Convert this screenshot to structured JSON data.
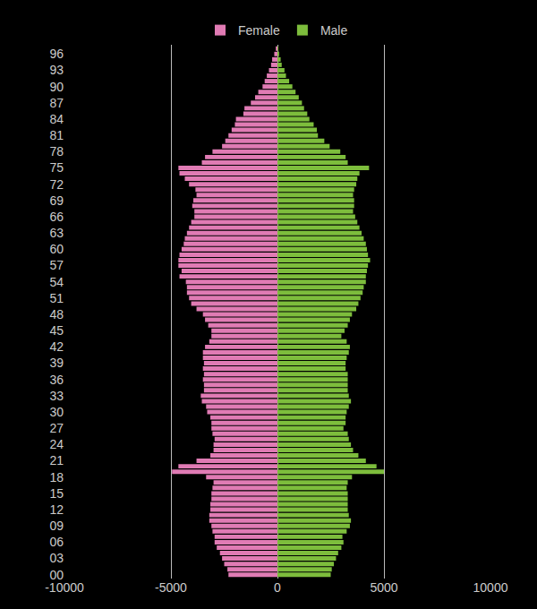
{
  "chart_data": {
    "type": "bar",
    "orientation": "horizontal",
    "stacked": true,
    "grid": true,
    "legend": "top",
    "categories": [
      "00",
      null,
      null,
      "03",
      null,
      null,
      "06",
      null,
      null,
      "09",
      null,
      null,
      "12",
      null,
      null,
      "15",
      null,
      null,
      "18",
      null,
      null,
      "21",
      null,
      null,
      "24",
      null,
      null,
      "27",
      null,
      null,
      "30",
      null,
      null,
      "33",
      null,
      null,
      "36",
      null,
      null,
      "39",
      null,
      null,
      "42",
      null,
      null,
      "45",
      null,
      null,
      "48",
      null,
      null,
      "51",
      null,
      null,
      "54",
      null,
      null,
      "57",
      null,
      null,
      "60",
      null,
      null,
      "63",
      null,
      null,
      "66",
      null,
      null,
      "69",
      null,
      null,
      "72",
      null,
      null,
      "75",
      null,
      null,
      "78",
      null,
      null,
      "81",
      null,
      null,
      "84",
      null,
      null,
      "87",
      null,
      null,
      "90",
      null,
      null,
      "93",
      null,
      null,
      "96",
      null
    ],
    "series": [
      {
        "name": "Female",
        "color": "#e07bb4",
        "values": [
          -2300,
          -2350,
          -2500,
          -2600,
          -2700,
          -2850,
          -2950,
          -2950,
          -3050,
          -3100,
          -3200,
          -3200,
          -3150,
          -3150,
          -3100,
          -3100,
          -3050,
          -3000,
          -3350,
          -4950,
          -4650,
          -3800,
          -3150,
          -3000,
          -3000,
          -2950,
          -3050,
          -3100,
          -3100,
          -3150,
          -3300,
          -3350,
          -3550,
          -3600,
          -3450,
          -3450,
          -3500,
          -3450,
          -3500,
          -3450,
          -3500,
          -3500,
          -3400,
          -3200,
          -3100,
          -3100,
          -3250,
          -3400,
          -3500,
          -3800,
          -4050,
          -4150,
          -4250,
          -4250,
          -4300,
          -4600,
          -4500,
          -4650,
          -4650,
          -4600,
          -4500,
          -4400,
          -4350,
          -4250,
          -4150,
          -4050,
          -3900,
          -3900,
          -4000,
          -3950,
          -3800,
          -3850,
          -4150,
          -4350,
          -4600,
          -4650,
          -3550,
          -3400,
          -3050,
          -2600,
          -2450,
          -2300,
          -2150,
          -2000,
          -1950,
          -1600,
          -1550,
          -1250,
          -1050,
          -900,
          -700,
          -600,
          -500,
          -400,
          -300,
          -250,
          -150,
          -80
        ]
      },
      {
        "name": "Male",
        "color": "#7dbd3c",
        "values": [
          2500,
          2550,
          2650,
          2750,
          2850,
          3000,
          3100,
          3050,
          3250,
          3400,
          3450,
          3350,
          3300,
          3300,
          3300,
          3300,
          3250,
          3300,
          3500,
          5000,
          4650,
          4150,
          3800,
          3550,
          3450,
          3350,
          3300,
          3100,
          3200,
          3200,
          3250,
          3350,
          3450,
          3350,
          3300,
          3300,
          3300,
          3300,
          3200,
          3200,
          3250,
          3350,
          3400,
          3250,
          3000,
          3150,
          3300,
          3400,
          3500,
          3700,
          3800,
          3900,
          4000,
          4050,
          4150,
          4150,
          4200,
          4250,
          4350,
          4250,
          4200,
          4150,
          4050,
          3950,
          3850,
          3750,
          3650,
          3550,
          3600,
          3600,
          3550,
          3600,
          3700,
          3750,
          3850,
          4300,
          3300,
          3200,
          2950,
          2450,
          2200,
          1900,
          1850,
          1700,
          1500,
          1400,
          1250,
          1150,
          1000,
          850,
          700,
          550,
          400,
          330,
          200,
          150,
          80,
          40
        ]
      }
    ],
    "xlim": [
      -10000,
      10000
    ],
    "xticks": [
      -10000,
      -5000,
      0,
      5000,
      10000
    ]
  }
}
